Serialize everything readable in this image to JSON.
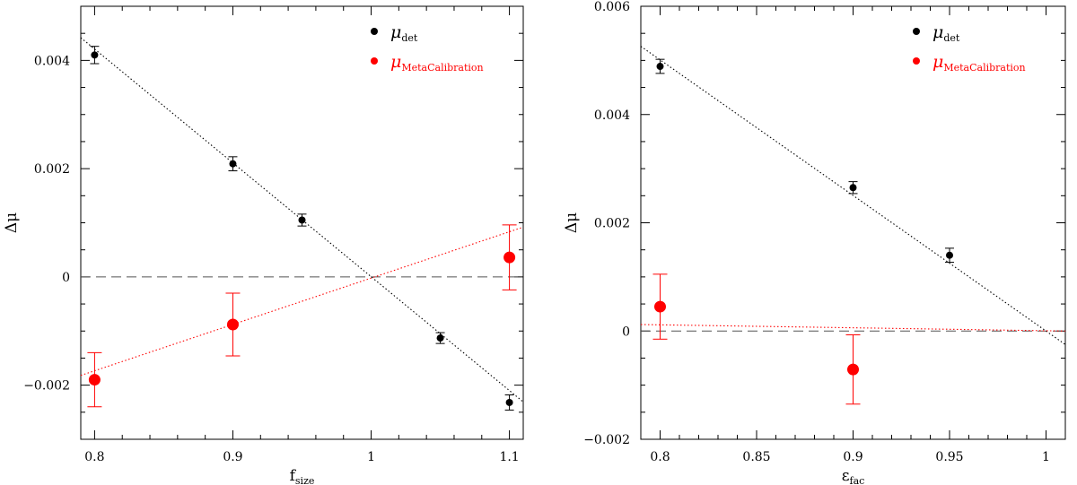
{
  "chart_data": [
    {
      "type": "scatter",
      "xlabel": "f",
      "xlabel_sub": "size",
      "ylabel": "Δμ",
      "xlim": [
        0.79,
        1.11
      ],
      "ylim": [
        -0.003,
        0.005
      ],
      "xticks": [
        0.8,
        0.9,
        1.0,
        1.1
      ],
      "xtick_labels": [
        "0.8",
        "0.9",
        "1",
        "1.1"
      ],
      "yticks": [
        -0.002,
        0,
        0.002,
        0.004
      ],
      "ytick_labels": [
        "−0.002",
        "0",
        "0.002",
        "0.004"
      ],
      "grid": false,
      "legend_position": "top-right",
      "reference_line": {
        "y": 0,
        "style": "dashed",
        "color": "#555555"
      },
      "series": [
        {
          "name": "μ",
          "name_sub": "det",
          "color": "#000000",
          "points": [
            {
              "x": 0.8,
              "y": 0.0041,
              "err": 0.00016
            },
            {
              "x": 0.9,
              "y": 0.00209,
              "err": 0.00013
            },
            {
              "x": 0.95,
              "y": 0.00105,
              "err": 0.00011
            },
            {
              "x": 1.05,
              "y": -0.00113,
              "err": 0.0001
            },
            {
              "x": 1.1,
              "y": -0.00232,
              "err": 0.00014
            }
          ],
          "fit_line": [
            [
              0.79,
              0.00442
            ],
            [
              1.11,
              -0.00231
            ]
          ]
        },
        {
          "name": "μ",
          "name_sub": "MetaCalibration",
          "color": "#ff0000",
          "points": [
            {
              "x": 0.8,
              "y": -0.0019,
              "err": 0.0005
            },
            {
              "x": 0.9,
              "y": -0.00088,
              "err": 0.00058
            },
            {
              "x": 1.1,
              "y": 0.00036,
              "err": 0.0006
            }
          ],
          "fit_line": [
            [
              0.79,
              -0.00182
            ],
            [
              1.11,
              0.00092
            ]
          ]
        }
      ]
    },
    {
      "type": "scatter",
      "xlabel": "ε",
      "xlabel_sub": "fac",
      "ylabel": "Δμ",
      "xlim": [
        0.79,
        1.01
      ],
      "ylim": [
        -0.002,
        0.006
      ],
      "xticks": [
        0.8,
        0.85,
        0.9,
        0.95,
        1.0
      ],
      "xtick_labels": [
        "0.8",
        "0.85",
        "0.9",
        "0.95",
        "1"
      ],
      "yticks": [
        -0.002,
        0,
        0.002,
        0.004,
        0.006
      ],
      "ytick_labels": [
        "−0.002",
        "0",
        "0.002",
        "0.004",
        "0.006"
      ],
      "grid": false,
      "legend_position": "top-right",
      "reference_line": {
        "y": 0,
        "style": "dashed",
        "color": "#555555"
      },
      "series": [
        {
          "name": "μ",
          "name_sub": "det",
          "color": "#000000",
          "points": [
            {
              "x": 0.8,
              "y": 0.00489,
              "err": 0.00013
            },
            {
              "x": 0.9,
              "y": 0.00265,
              "err": 0.00011
            },
            {
              "x": 0.95,
              "y": 0.0014,
              "err": 0.00013
            }
          ],
          "fit_line": [
            [
              0.79,
              0.00526
            ],
            [
              1.01,
              -0.00025
            ]
          ]
        },
        {
          "name": "μ",
          "name_sub": "MetaCalibration",
          "color": "#ff0000",
          "points": [
            {
              "x": 0.8,
              "y": 0.00045,
              "err": 0.0006
            },
            {
              "x": 0.9,
              "y": -0.00071,
              "err": 0.00064
            }
          ],
          "fit_line": [
            [
              0.79,
              0.00012
            ],
            [
              1.01,
              0.0
            ]
          ]
        }
      ]
    }
  ]
}
